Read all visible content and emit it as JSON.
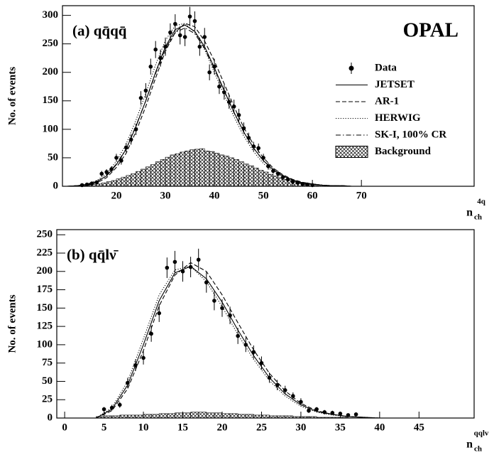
{
  "chart_data": [
    {
      "type": "errorbar",
      "panel_label": "(a) qq̄qq̄",
      "annotation": "OPAL",
      "y_label": "No. of events",
      "x_label": {
        "base": "n",
        "sub": "ch",
        "sup": "4q"
      },
      "xlim": [
        9,
        93
      ],
      "ylim": [
        0,
        317
      ],
      "xticks": [
        20,
        30,
        40,
        50,
        60,
        70
      ],
      "yticks": [
        0,
        50,
        100,
        150,
        200,
        250,
        300
      ],
      "legend": "upper right",
      "data": {
        "name": "Data",
        "color": "#000000",
        "x": [
          13,
          14,
          15,
          16,
          17,
          18,
          19,
          20,
          21,
          22,
          23,
          24,
          25,
          26,
          27,
          28,
          29,
          30,
          31,
          32,
          33,
          34,
          35,
          36,
          37,
          38,
          39,
          40,
          41,
          42,
          43,
          44,
          45,
          46,
          47,
          48,
          49,
          50,
          51,
          52,
          53,
          54,
          55,
          56,
          57,
          58,
          59,
          60
        ],
        "values": [
          2,
          3,
          5,
          7,
          22,
          25,
          30,
          50,
          45,
          68,
          82,
          100,
          155,
          168,
          210,
          240,
          225,
          245,
          270,
          285,
          265,
          262,
          298,
          290,
          245,
          262,
          200,
          210,
          175,
          165,
          148,
          140,
          125,
          102,
          85,
          70,
          67,
          50,
          35,
          27,
          22,
          16,
          12,
          8,
          6,
          4,
          3,
          2
        ],
        "errors": [
          1,
          2,
          2,
          3,
          5,
          5,
          5,
          7,
          7,
          8,
          9,
          10,
          12,
          13,
          14,
          15,
          15,
          16,
          16,
          17,
          16,
          16,
          17,
          17,
          16,
          16,
          14,
          14,
          13,
          13,
          12,
          12,
          11,
          10,
          9,
          8,
          8,
          7,
          6,
          5,
          5,
          4,
          3,
          3,
          2,
          2,
          2,
          1
        ]
      },
      "curves": {
        "x": [
          10,
          12,
          14,
          16,
          18,
          20,
          22,
          24,
          26,
          28,
          30,
          32,
          34,
          36,
          38,
          40,
          42,
          44,
          46,
          48,
          50,
          52,
          54,
          56,
          58,
          60,
          62,
          64,
          66,
          68,
          70
        ],
        "series": [
          {
            "name": "JETSET",
            "style": "solid",
            "color": "#000000",
            "values": [
              0,
              1,
              3,
              8,
              18,
              38,
              65,
              105,
              150,
              200,
              245,
              275,
              283,
              272,
              245,
              208,
              168,
              130,
              95,
              67,
              45,
              29,
              18,
              11,
              6,
              4,
              2,
              1,
              1,
              0,
              0
            ]
          },
          {
            "name": "AR-1",
            "style": "dashed",
            "color": "#000000",
            "values": [
              0,
              1,
              2,
              6,
              15,
              33,
              58,
              96,
              140,
              190,
              237,
              270,
              286,
              280,
              255,
              220,
              180,
              140,
              103,
              73,
              50,
              32,
              20,
              12,
              7,
              4,
              2,
              1,
              1,
              0,
              0
            ]
          },
          {
            "name": "HERWIG",
            "style": "dotted",
            "color": "#000000",
            "values": [
              0,
              1,
              4,
              10,
              22,
              44,
              74,
              116,
              163,
              213,
              256,
              282,
              286,
              270,
              240,
              200,
              160,
              122,
              88,
              61,
              40,
              26,
              16,
              9,
              5,
              3,
              2,
              1,
              0,
              0,
              0
            ]
          },
          {
            "name": "SK-I, 100% CR",
            "style": "dashdot",
            "color": "#000000",
            "values": [
              0,
              1,
              3,
              8,
              19,
              39,
              66,
              106,
              150,
              198,
              242,
              270,
              278,
              268,
              242,
              206,
              167,
              129,
              95,
              67,
              45,
              29,
              18,
              11,
              6,
              4,
              2,
              1,
              1,
              0,
              0
            ]
          }
        ]
      },
      "background": {
        "name": "Background",
        "color": "#000000",
        "bins": [
          13,
          14,
          15,
          16,
          17,
          18,
          19,
          20,
          21,
          22,
          23,
          24,
          25,
          26,
          27,
          28,
          29,
          30,
          31,
          32,
          33,
          34,
          35,
          36,
          37,
          38,
          39,
          40,
          41,
          42,
          43,
          44,
          45,
          46,
          47,
          48,
          49,
          50,
          51,
          52,
          53,
          54,
          55,
          56,
          57,
          58,
          59,
          60,
          61,
          62,
          63,
          64,
          65,
          66,
          67,
          68,
          69,
          70
        ],
        "values": [
          1,
          2,
          3,
          4,
          6,
          8,
          10,
          13,
          16,
          19,
          22,
          26,
          30,
          34,
          38,
          43,
          47,
          51,
          55,
          57,
          60,
          62,
          64,
          65,
          66,
          62,
          61,
          58,
          55,
          53,
          50,
          47,
          43,
          39,
          36,
          32,
          28,
          25,
          21,
          18,
          15,
          12,
          10,
          8,
          6,
          5,
          4,
          3,
          2,
          2,
          1,
          1,
          1,
          1,
          0,
          0,
          0
        ]
      }
    },
    {
      "type": "errorbar",
      "panel_label": "(b) qq̄lν̄",
      "y_label": "No. of events",
      "x_label": {
        "base": "n",
        "sub": "ch",
        "sup": "qqlv"
      },
      "xlim": [
        -1,
        52
      ],
      "ylim": [
        0,
        257
      ],
      "xticks": [
        0,
        5,
        10,
        15,
        20,
        25,
        30,
        35,
        40,
        45
      ],
      "yticks": [
        0,
        25,
        50,
        75,
        100,
        125,
        150,
        175,
        200,
        225,
        250
      ],
      "data": {
        "color": "#000000",
        "x": [
          5,
          6,
          7,
          8,
          9,
          10,
          11,
          12,
          13,
          14,
          15,
          16,
          17,
          18,
          19,
          20,
          21,
          22,
          23,
          24,
          25,
          26,
          27,
          28,
          29,
          30,
          31,
          32,
          33,
          34,
          35,
          36,
          37
        ],
        "values": [
          12,
          14,
          18,
          48,
          72,
          82,
          115,
          143,
          205,
          213,
          200,
          206,
          216,
          185,
          160,
          150,
          140,
          112,
          100,
          90,
          75,
          55,
          45,
          38,
          30,
          22,
          10,
          12,
          8,
          7,
          6,
          4,
          5
        ],
        "errors": [
          3,
          4,
          4,
          7,
          8,
          9,
          11,
          12,
          14,
          15,
          14,
          14,
          15,
          14,
          13,
          12,
          12,
          11,
          10,
          9,
          9,
          7,
          7,
          6,
          5,
          5,
          3,
          3,
          3,
          3,
          2,
          2,
          2
        ]
      },
      "curves": {
        "x": [
          4,
          6,
          8,
          10,
          12,
          14,
          16,
          18,
          20,
          22,
          24,
          26,
          28,
          30,
          32,
          34,
          36,
          38,
          40
        ],
        "series": [
          {
            "style": "solid",
            "color": "#000000",
            "values": [
              0,
              12,
              45,
              100,
              160,
              198,
              207,
              190,
              158,
              120,
              85,
              55,
              33,
              18,
              9,
              5,
              2,
              1,
              0
            ]
          },
          {
            "style": "dashed",
            "color": "#000000",
            "values": [
              0,
              10,
              40,
              92,
              153,
              195,
              212,
              200,
              168,
              130,
              93,
              61,
              37,
              20,
              10,
              5,
              2,
              1,
              0
            ]
          },
          {
            "style": "dotted",
            "color": "#000000",
            "values": [
              0,
              14,
              50,
              108,
              168,
              202,
              207,
              186,
              152,
              114,
              80,
              51,
              30,
              16,
              8,
              4,
              2,
              1,
              0
            ]
          }
        ]
      },
      "background": {
        "color": "#000000",
        "bins": [
          4,
          5,
          6,
          7,
          8,
          9,
          10,
          11,
          12,
          13,
          14,
          15,
          16,
          17,
          18,
          19,
          20,
          21,
          22,
          23,
          24,
          25,
          26,
          27,
          28,
          29,
          30,
          31,
          32,
          33,
          34,
          35,
          36,
          37,
          38,
          39,
          40
        ],
        "values": [
          2,
          3,
          3,
          4,
          4,
          4,
          5,
          5,
          6,
          6,
          7,
          7,
          8,
          8,
          7,
          7,
          6,
          6,
          5,
          5,
          4,
          4,
          3,
          3,
          3,
          2,
          2,
          2,
          1,
          1,
          1,
          1,
          0,
          0,
          0,
          0
        ]
      }
    }
  ]
}
